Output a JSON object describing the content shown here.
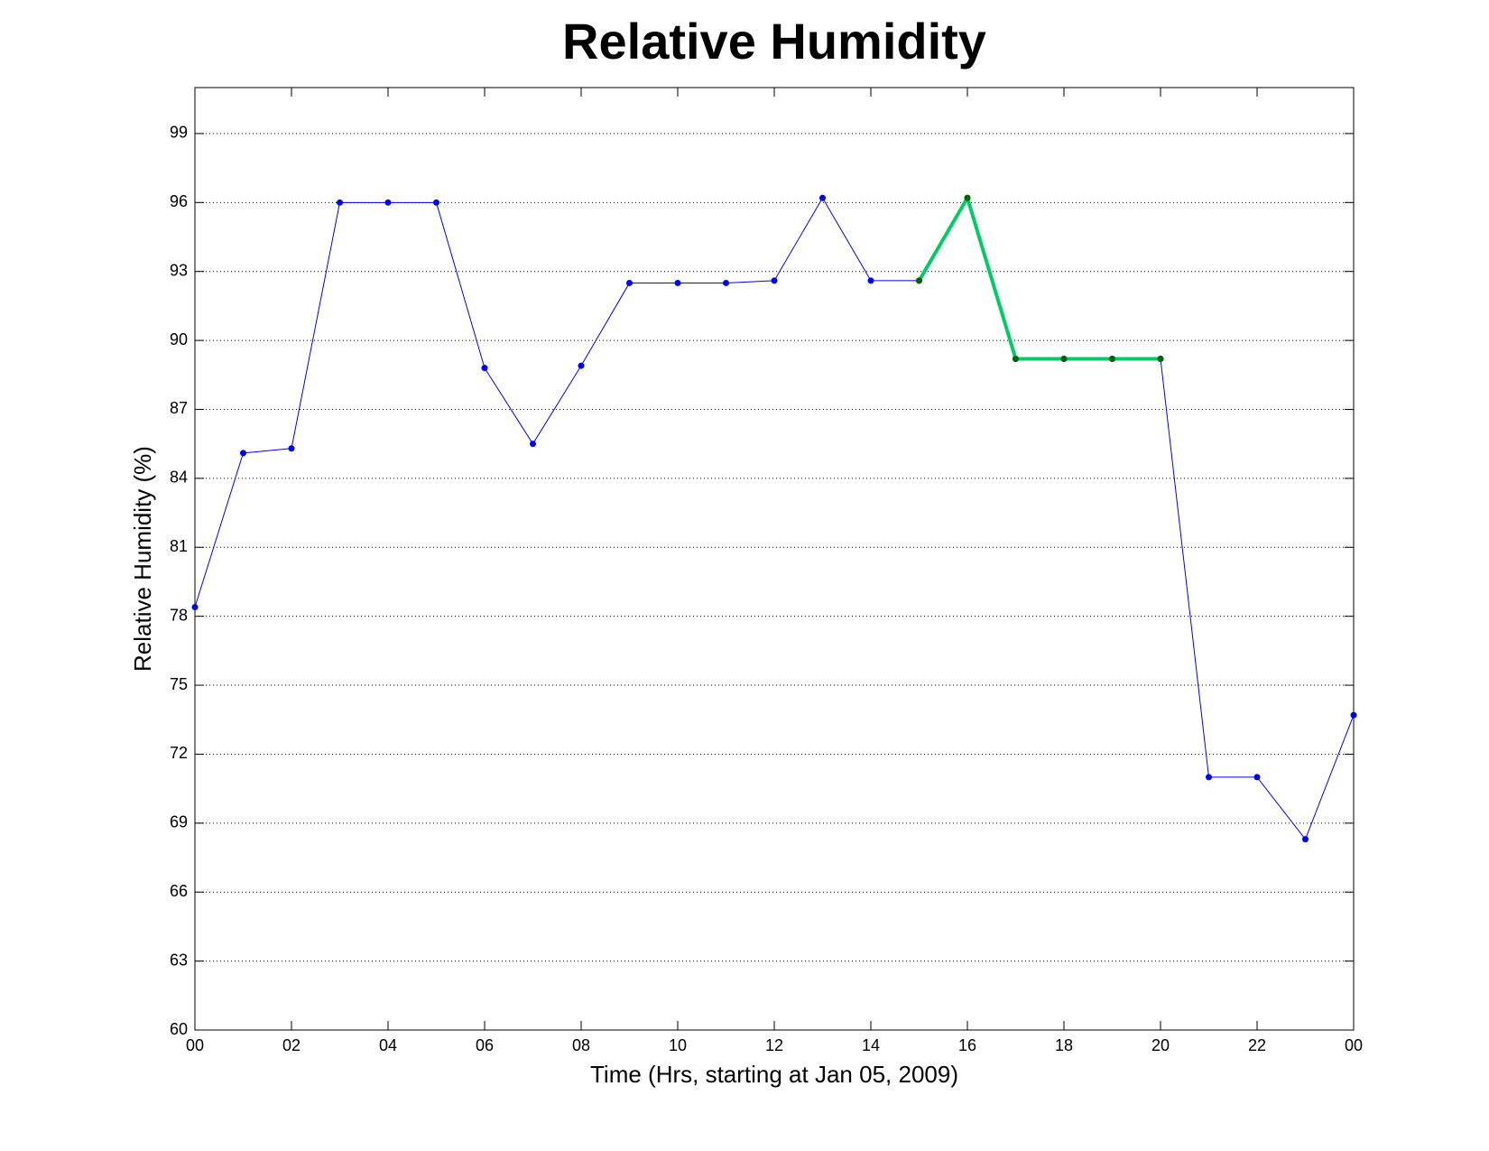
{
  "chart_data": {
    "type": "line",
    "title": "Relative Humidity",
    "x_label": "Time (Hrs, starting at Jan 05, 2009)",
    "y_label": "Relative Humidity (%)",
    "x": [
      0,
      1,
      2,
      3,
      4,
      5,
      6,
      7,
      8,
      9,
      10,
      11,
      12,
      13,
      14,
      15,
      16,
      17,
      18,
      19,
      20,
      21,
      22,
      23,
      24
    ],
    "series": [
      {
        "color": "#0000ff",
        "marker_color": "#0000ff",
        "line_width": 1,
        "values": [
          78.4,
          85.1,
          85.3,
          96.0,
          96.0,
          96.0,
          88.8,
          85.5,
          88.9,
          92.5,
          92.5,
          92.5,
          92.6,
          96.2,
          92.6,
          92.6,
          96.2,
          89.2,
          89.2,
          89.2,
          89.2,
          71.0,
          71.0,
          68.3,
          73.7
        ]
      },
      {
        "color": "#00cc66",
        "marker_color": "#006400",
        "line_width": 4,
        "values": [
          null,
          null,
          null,
          null,
          null,
          null,
          null,
          null,
          null,
          null,
          null,
          null,
          null,
          null,
          null,
          92.6,
          96.2,
          89.2,
          89.2,
          89.2,
          89.2,
          null,
          null,
          null,
          null
        ]
      }
    ],
    "xlim": [
      0,
      24
    ],
    "xticks": [
      {
        "value": 0,
        "label": "00"
      },
      {
        "value": 2,
        "label": "02"
      },
      {
        "value": 4,
        "label": "04"
      },
      {
        "value": 6,
        "label": "06"
      },
      {
        "value": 8,
        "label": "08"
      },
      10,
      12,
      14,
      16,
      18,
      20,
      22,
      {
        "value": 24,
        "label": "00"
      }
    ],
    "ylim": [
      60,
      101
    ],
    "yticks": [
      60,
      63,
      66,
      69,
      72,
      75,
      78,
      81,
      84,
      87,
      90,
      93,
      96,
      99
    ],
    "grid": true
  }
}
